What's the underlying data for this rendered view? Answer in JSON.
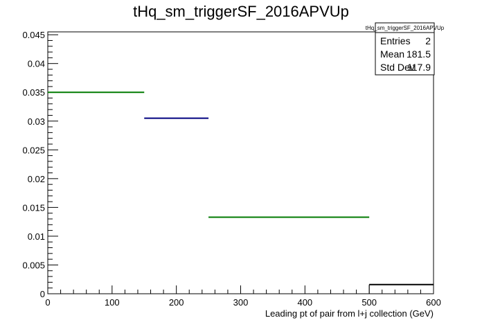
{
  "chart_data": {
    "type": "histogram",
    "title": "tHq_sm_triggerSF_2016APVUp",
    "xlabel": "Leading pt of pair from l+j collection (GeV)",
    "ylabel": "",
    "xlim": [
      0,
      600
    ],
    "ylim": [
      0,
      0.0455
    ],
    "x_ticks": [
      0,
      100,
      200,
      300,
      400,
      500,
      600
    ],
    "y_ticks": [
      0,
      0.005,
      0.01,
      0.015,
      0.02,
      0.025,
      0.03,
      0.035,
      0.04,
      0.045
    ],
    "x_tick_labels": [
      "0",
      "100",
      "200",
      "300",
      "400",
      "500",
      "600"
    ],
    "y_tick_labels": [
      "0",
      "0.005",
      "0.01",
      "0.015",
      "0.02",
      "0.025",
      "0.03",
      "0.035",
      "0.04",
      "0.045"
    ],
    "bins": [
      {
        "low": 0,
        "high": 150,
        "value": 0.035,
        "color": "#007a00"
      },
      {
        "low": 150,
        "high": 250,
        "value": 0.0305,
        "color": "#00007f"
      },
      {
        "low": 250,
        "high": 500,
        "value": 0.0133,
        "color": "#007a00"
      },
      {
        "low": 500,
        "high": 600,
        "value": 0.0016,
        "color": "#000000"
      }
    ],
    "grid": false,
    "stats": {
      "name": "tHq_sm_triggerSF_2016APVUp",
      "rows": [
        {
          "label": "Entries",
          "value": "2"
        },
        {
          "label": "Mean",
          "value": "181.5"
        },
        {
          "label": "Std Dev",
          "value": "117.9"
        }
      ]
    }
  }
}
